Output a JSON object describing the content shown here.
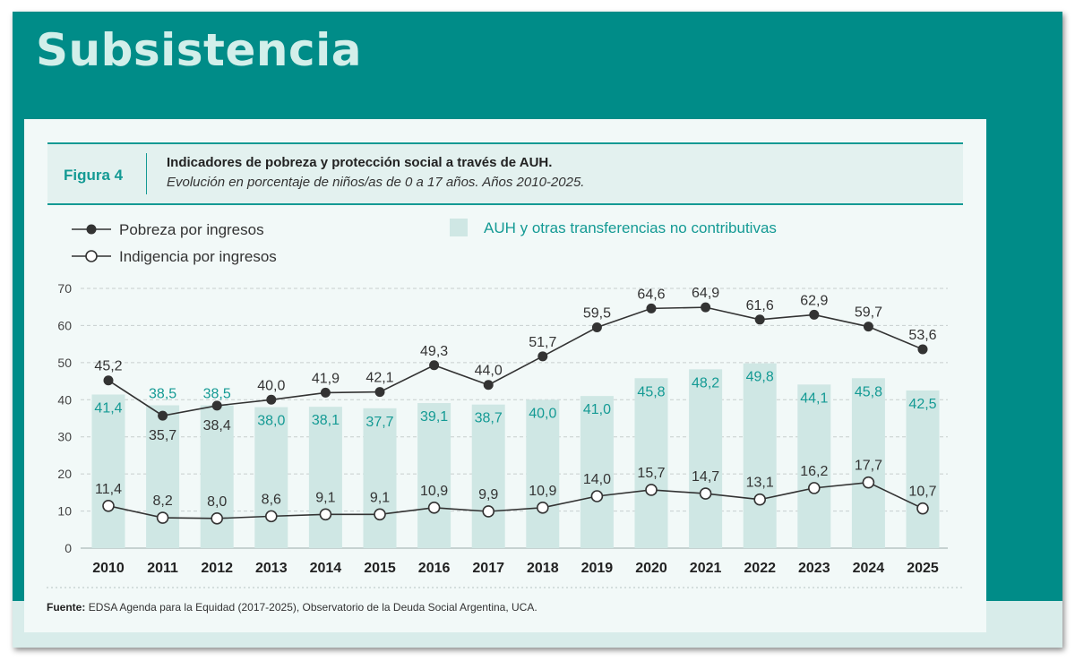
{
  "heading": "Subsistencia",
  "figure": {
    "label": "Figura 4",
    "title": "Indicadores de pobreza y protección social a través de AUH.",
    "subtitle": "Evolución en porcentaje de niños/as de 0 a 17 años. Años 2010-2025."
  },
  "source": {
    "label": "Fuente:",
    "text": "EDSA Agenda para la Equidad (2017-2025), Observatorio de la Deuda Social Argentina, UCA."
  },
  "colors": {
    "teal": "#149a94",
    "bar": "#cfe7e4",
    "line": "#333333",
    "grid": "#c8cfce"
  },
  "chart_data": {
    "type": "bar",
    "categories": [
      "2010",
      "2011",
      "2012",
      "2013",
      "2014",
      "2015",
      "2016",
      "2017",
      "2018",
      "2019",
      "2020",
      "2021",
      "2022",
      "2023",
      "2024",
      "2025"
    ],
    "ylim": [
      0,
      70
    ],
    "yticks": [
      0,
      10,
      20,
      30,
      40,
      50,
      60,
      70
    ],
    "grid": true,
    "legend_position": "top-left",
    "series": [
      {
        "name": "AUH y otras transferencias no contributivas",
        "kind": "bar",
        "values": [
          41.4,
          38.5,
          38.5,
          38.0,
          38.1,
          37.7,
          39.1,
          38.7,
          40.0,
          41.0,
          45.8,
          48.2,
          49.8,
          44.1,
          45.8,
          42.5
        ],
        "labels": [
          "41,4",
          "38,5",
          "38,5",
          "38,0",
          "38,1",
          "37,7",
          "39,1",
          "38,7",
          "40,0",
          "41,0",
          "45,8",
          "48,2",
          "49,8",
          "44,1",
          "45,8",
          "42,5"
        ]
      },
      {
        "name": "Pobreza por ingresos",
        "kind": "line",
        "marker": "filled",
        "values": [
          45.2,
          35.7,
          38.4,
          40.0,
          41.9,
          42.1,
          49.3,
          44.0,
          51.7,
          59.5,
          64.6,
          64.9,
          61.6,
          62.9,
          59.7,
          53.6
        ],
        "labels": [
          "45,2",
          "35,7",
          "38,4",
          "40,0",
          "41,9",
          "42,1",
          "49,3",
          "44,0",
          "51,7",
          "59,5",
          "64,6",
          "64,9",
          "61,6",
          "62,9",
          "59,7",
          "53,6"
        ]
      },
      {
        "name": "Indigencia por ingresos",
        "kind": "line",
        "marker": "hollow",
        "values": [
          11.4,
          8.2,
          8.0,
          8.6,
          9.1,
          9.1,
          10.9,
          9.9,
          10.9,
          14.0,
          15.7,
          14.7,
          13.1,
          16.2,
          17.7,
          10.7
        ],
        "labels": [
          "11,4",
          "8,2",
          "8,0",
          "8,6",
          "9,1",
          "9,1",
          "10,9",
          "9,9",
          "10,9",
          "14,0",
          "15,7",
          "14,7",
          "13,1",
          "16,2",
          "17,7",
          "10,7"
        ]
      }
    ]
  }
}
